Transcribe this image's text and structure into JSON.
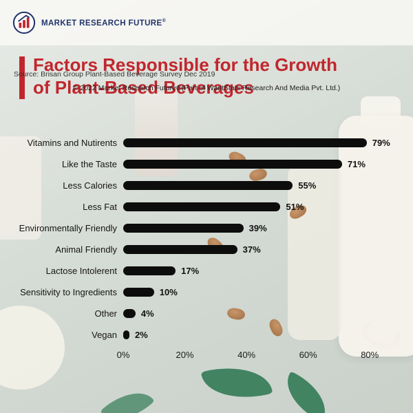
{
  "logo": {
    "brand": "MARKET RESEARCH FUTURE",
    "registered": "®"
  },
  "title": {
    "line1": "Factors Responsible for the Growth",
    "line2": "of Plant-Based Beverages",
    "accent_color": "#c0272d"
  },
  "chart_data": {
    "type": "bar",
    "orientation": "horizontal",
    "title": "Factors Responsible for the Growth of Plant-Based Beverages",
    "categories": [
      "Vitamins and Nutirents",
      "Like the Taste",
      "Less Calories",
      "Less Fat",
      "Environmentally Friendly",
      "Animal Friendly",
      "Lactose Intolerent",
      "Sensitivity to Ingredients",
      "Other",
      "Vegan"
    ],
    "values": [
      79,
      71,
      55,
      51,
      39,
      37,
      17,
      10,
      4,
      2
    ],
    "value_labels": [
      "79%",
      "71%",
      "55%",
      "51%",
      "39%",
      "37%",
      "17%",
      "10%",
      "4%",
      "2%"
    ],
    "x_ticks": [
      "0%",
      "20%",
      "40%",
      "60%",
      "80%"
    ],
    "x_tick_values": [
      0,
      20,
      40,
      60,
      80
    ],
    "xlim": [
      0,
      90
    ],
    "axis_max": 90,
    "bar_color": "#0d0d0d",
    "grid": false,
    "legend": "none"
  },
  "footer": {
    "source": "Source: Brisan Group Plant-Based Beverage Survey Dec 2019",
    "copyright": "© 2022 Market Research Future®(Part of WantStats Research And Media Pvt. Ltd.)"
  }
}
